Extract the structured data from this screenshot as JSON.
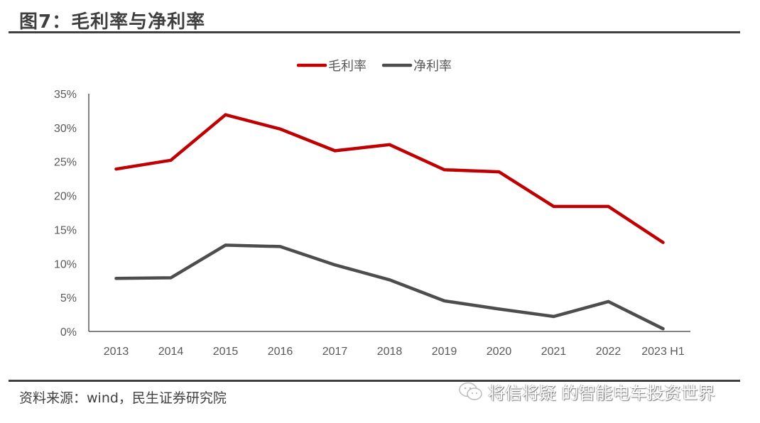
{
  "header": {
    "title": "图7：毛利率与净利率"
  },
  "footer": {
    "source": "资料来源：wind，民生证券研究院",
    "watermark": "将信将疑 的智能电车投资世界",
    "watermark_icon": "wechat-icon"
  },
  "colors": {
    "gross_margin": "#C00000",
    "net_margin": "#4D4D4D",
    "axis": "#595959",
    "rule": "#404040"
  },
  "chart_data": {
    "type": "line",
    "title": "毛利率与净利率",
    "xlabel": "",
    "ylabel": "",
    "categories": [
      "2013",
      "2014",
      "2015",
      "2016",
      "2017",
      "2018",
      "2019",
      "2020",
      "2021",
      "2022",
      "2023 H1"
    ],
    "series": [
      {
        "name": "毛利率",
        "color": "#C00000",
        "values": [
          0.239,
          0.252,
          0.319,
          0.298,
          0.266,
          0.275,
          0.238,
          0.235,
          0.184,
          0.184,
          0.131
        ]
      },
      {
        "name": "净利率",
        "color": "#4D4D4D",
        "values": [
          0.078,
          0.079,
          0.127,
          0.125,
          0.098,
          0.076,
          0.045,
          0.033,
          0.022,
          0.044,
          0.004
        ]
      }
    ],
    "ylim": [
      0,
      0.35
    ],
    "yticks": [
      0,
      0.05,
      0.1,
      0.15,
      0.2,
      0.25,
      0.3,
      0.35
    ],
    "ytick_labels": [
      "0%",
      "5%",
      "10%",
      "15%",
      "20%",
      "25%",
      "30%",
      "35%"
    ],
    "grid": false,
    "legend_position": "top-center"
  }
}
